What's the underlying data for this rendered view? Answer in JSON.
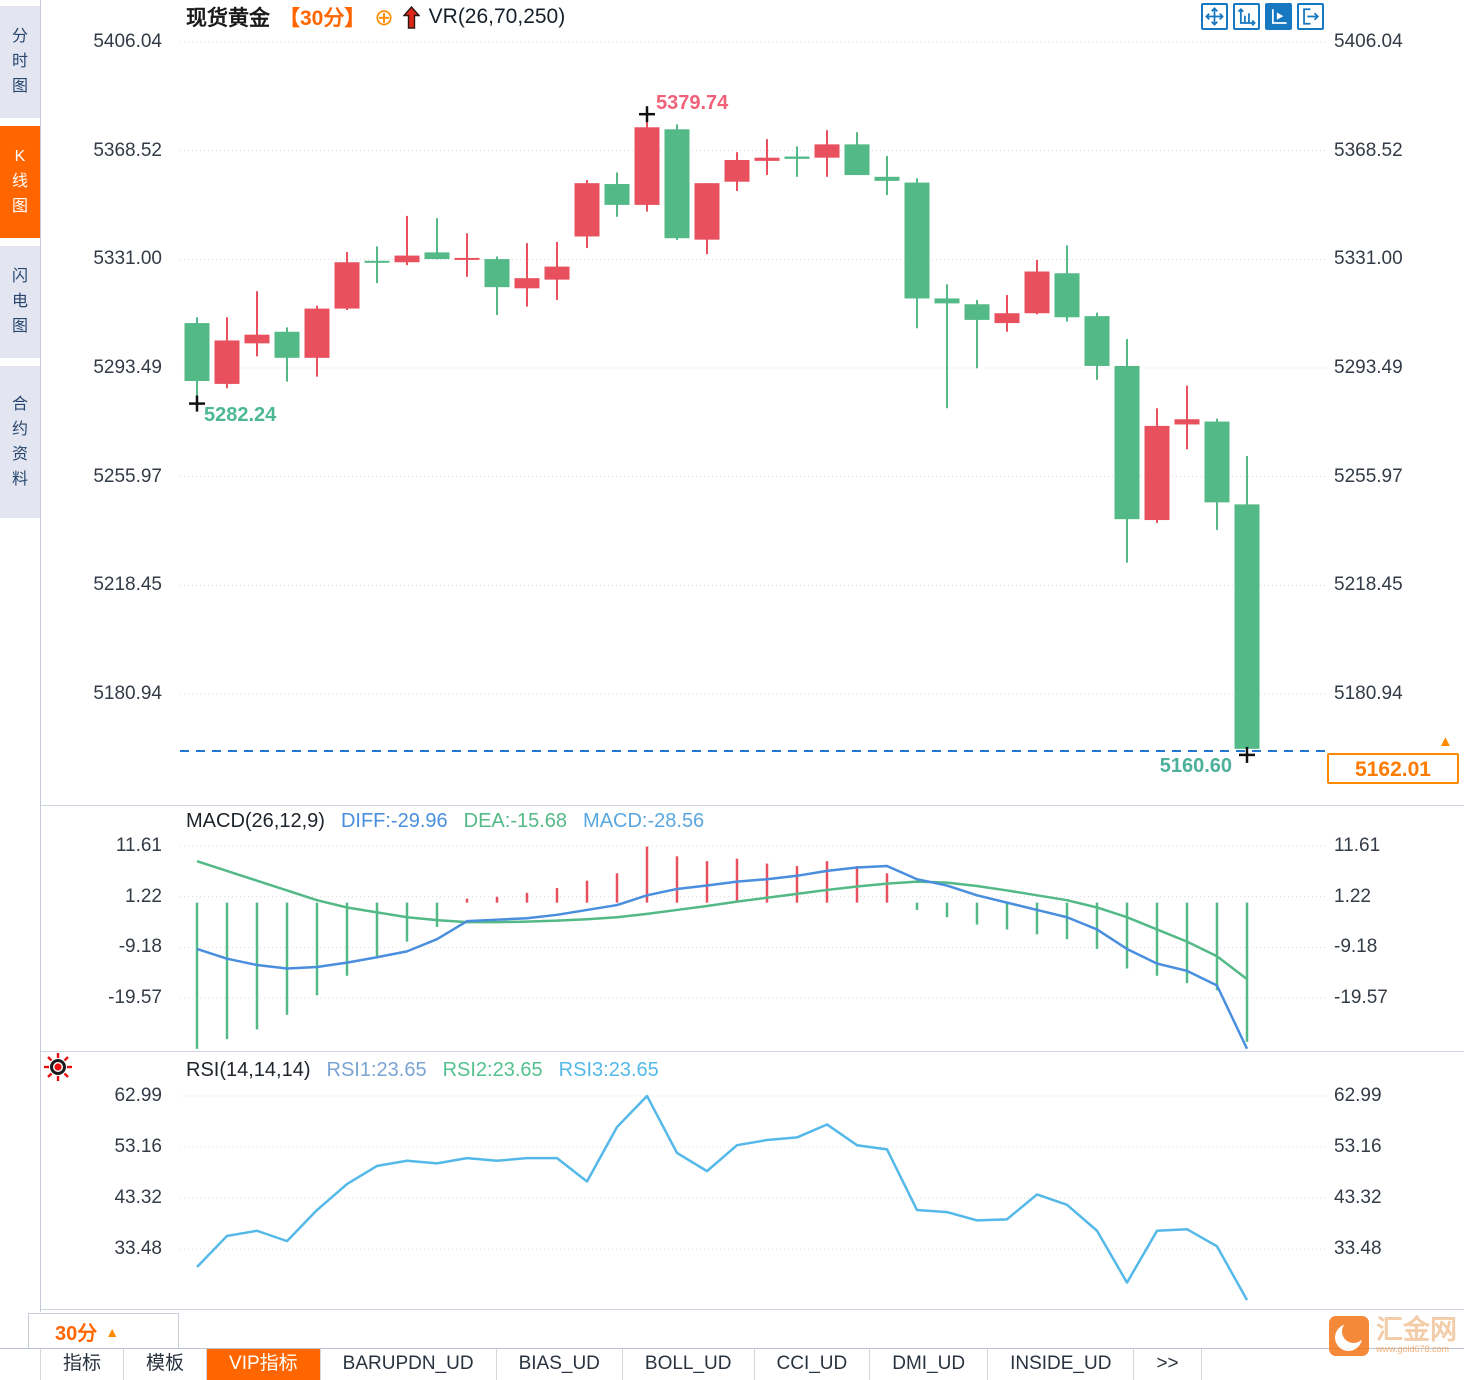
{
  "header": {
    "symbol": "现货黄金",
    "period": "【30分】",
    "plus_icon": "⊕",
    "up_arrow_icon": "red-up-arrow",
    "indicator": "VR(26,70,250)"
  },
  "toolbar": {
    "icons": [
      {
        "name": "crosshair-move-icon",
        "active": false
      },
      {
        "name": "axis-zoom-icon",
        "active": false
      },
      {
        "name": "axis-play-icon",
        "active": true
      },
      {
        "name": "pane-collapse-icon",
        "active": false
      }
    ]
  },
  "sidebar": {
    "tabs": [
      {
        "label": "分时图",
        "selected": false
      },
      {
        "label": "K线图",
        "selected": true
      },
      {
        "label": "闪电图",
        "selected": false
      },
      {
        "label": "合约资料",
        "selected": false
      }
    ]
  },
  "colors": {
    "up": "#e8505e",
    "down": "#53b987",
    "diff_line": "#4a8ede",
    "dea_line": "#53b987",
    "macd_value": "#5aa7e0",
    "rsi1_label": "#7aa4d4",
    "rsi2_label": "#53c08f",
    "rsi_line": "#54b9e8",
    "accent_orange": "#ff6600",
    "dashed_price_line": "#1f78d1",
    "icon_blue": "#1778c2",
    "grid": "#dcdcdc"
  },
  "chart_data": [
    {
      "type": "candlestick",
      "symbol": "现货黄金",
      "period": "30分",
      "overlay_indicator": "VR(26,70,250)",
      "y_ticks": [
        "5406.04",
        "5368.52",
        "5331.00",
        "5293.49",
        "5255.97",
        "5218.45",
        "5180.94"
      ],
      "ohlc": [
        [
          5309,
          5311,
          5282.24,
          5289
        ],
        [
          5288,
          5311,
          5286.5,
          5303
        ],
        [
          5302,
          5320,
          5297.5,
          5305
        ],
        [
          5306,
          5307.5,
          5288.8,
          5297
        ],
        [
          5297,
          5315,
          5290.5,
          5314
        ],
        [
          5314,
          5333.5,
          5313.5,
          5330
        ],
        [
          5330.5,
          5335.5,
          5322.8,
          5330
        ],
        [
          5330,
          5346,
          5329,
          5332.3
        ],
        [
          5333.4,
          5345.2,
          5331,
          5331.1
        ],
        [
          5331,
          5340,
          5325,
          5331.5
        ],
        [
          5331.1,
          5332,
          5311.8,
          5321.4
        ],
        [
          5321,
          5336.6,
          5314.7,
          5324.5
        ],
        [
          5324,
          5337,
          5317,
          5328.5
        ],
        [
          5338.9,
          5358.4,
          5334.9,
          5357.3
        ],
        [
          5357,
          5361,
          5345.7,
          5349.8
        ],
        [
          5349.8,
          5379.74,
          5347.5,
          5376.6
        ],
        [
          5375.9,
          5377.6,
          5337.7,
          5338.3
        ],
        [
          5337.8,
          5357.3,
          5332.8,
          5357.3
        ],
        [
          5357.8,
          5368,
          5354.6,
          5365.3
        ],
        [
          5365,
          5372.5,
          5360.1,
          5366.1
        ],
        [
          5366.5,
          5370,
          5359.5,
          5365.7
        ],
        [
          5366.1,
          5375.6,
          5359.5,
          5370.7
        ],
        [
          5370.7,
          5374.9,
          5360.1,
          5360.1
        ],
        [
          5359.5,
          5366.7,
          5353.2,
          5358.1
        ],
        [
          5357.5,
          5359,
          5307.2,
          5317.5
        ],
        [
          5317.5,
          5322.4,
          5279.6,
          5315.8
        ],
        [
          5315.5,
          5317,
          5293.4,
          5310.1
        ],
        [
          5309,
          5318.7,
          5306,
          5312.4
        ],
        [
          5312.4,
          5330.8,
          5312,
          5326.8
        ],
        [
          5326.2,
          5335.8,
          5309.5,
          5311
        ],
        [
          5311.4,
          5312.6,
          5289.4,
          5294.2
        ],
        [
          5294.2,
          5303.5,
          5226.3,
          5241.3
        ],
        [
          5241,
          5279.6,
          5240,
          5273.5
        ],
        [
          5274,
          5287.4,
          5265.4,
          5275.8
        ],
        [
          5275,
          5276,
          5237.6,
          5247.1
        ],
        [
          5246.4,
          5263.1,
          5160.6,
          5162.01
        ]
      ],
      "annotations": {
        "high": {
          "index": 15,
          "label": "5379.74"
        },
        "low": {
          "index": 0,
          "label": "5282.24"
        },
        "last_low": {
          "index": 35,
          "label": "5160.60"
        },
        "current_price": {
          "value": "5162.01",
          "line_style": "dashed-blue"
        }
      }
    },
    {
      "type": "macd",
      "title": "MACD(26,12,9)",
      "readout": {
        "diff": "DIFF:-29.96",
        "dea": "DEA:-15.68",
        "macd": "MACD:-28.56"
      },
      "y_ticks": [
        "11.61",
        "1.22",
        "-9.18",
        "-19.57"
      ],
      "hist": [
        -30,
        -28,
        -26,
        -23,
        -19,
        -15,
        -11,
        -8,
        -5,
        0.8,
        1.2,
        2,
        3,
        4.5,
        6,
        11.5,
        9.5,
        8.5,
        9,
        8,
        7.5,
        8.5,
        7.5,
        6,
        -1.5,
        -3,
        -4.5,
        -5.5,
        -6.5,
        -7.5,
        -9.5,
        -13.5,
        -15,
        -16.5,
        -18,
        -28.56
      ],
      "diff": [
        -9.5,
        -11.5,
        -12.8,
        -13.5,
        -13.2,
        -12.3,
        -11.2,
        -10,
        -7.5,
        -3.8,
        -3.5,
        -3.2,
        -2.5,
        -1.5,
        -0.5,
        1.5,
        2.8,
        3.5,
        4.3,
        4.8,
        5.5,
        6.5,
        7.2,
        7.5,
        4.8,
        3.5,
        1.5,
        0,
        -1.5,
        -3,
        -5.5,
        -9.5,
        -12.5,
        -14,
        -17,
        -29.96
      ],
      "dea": [
        8.5,
        6.5,
        4.5,
        2.5,
        0.5,
        -1,
        -2,
        -3,
        -3.6,
        -4,
        -4,
        -3.9,
        -3.7,
        -3.4,
        -3,
        -2.3,
        -1.5,
        -0.7,
        0.2,
        1,
        1.8,
        2.6,
        3.3,
        3.9,
        4.3,
        4.1,
        3.4,
        2.5,
        1.5,
        0.5,
        -1,
        -3,
        -5.5,
        -8,
        -11,
        -15.68
      ]
    },
    {
      "type": "rsi",
      "title": "RSI(14,14,14)",
      "readout": {
        "rsi1": "RSI1:23.65",
        "rsi2": "RSI2:23.65",
        "rsi3": "RSI3:23.65"
      },
      "y_ticks": [
        "62.99",
        "53.16",
        "43.32",
        "33.48"
      ],
      "rsi": [
        30,
        36,
        37,
        35,
        41,
        46,
        49.5,
        50.5,
        50,
        51,
        50.5,
        51,
        51,
        46.5,
        57,
        63,
        52,
        48.5,
        53.5,
        54.5,
        55,
        57.5,
        53.5,
        52.7,
        41,
        40.6,
        39,
        39.2,
        44,
        42,
        37,
        27,
        37,
        37.3,
        34,
        23.65
      ]
    }
  ],
  "footer": {
    "period_label": "30分",
    "period_arrow": "▲",
    "tabs": [
      {
        "label": "指标",
        "selected": false
      },
      {
        "label": "模板",
        "selected": false
      },
      {
        "label": "VIP指标",
        "selected": true
      },
      {
        "label": "BARUPDN_UD",
        "selected": false
      },
      {
        "label": "BIAS_UD",
        "selected": false
      },
      {
        "label": "BOLL_UD",
        "selected": false
      },
      {
        "label": "CCI_UD",
        "selected": false
      },
      {
        "label": "DMI_UD",
        "selected": false
      },
      {
        "label": "INSIDE_UD",
        "selected": false
      },
      {
        "label": ">>",
        "selected": false
      }
    ]
  },
  "watermark": {
    "name": "汇金网",
    "url": "www.gold678.com"
  },
  "misc_icons": {
    "rsi_marker": "red-sun-icon",
    "tag_arrow": "orange-up-triangle"
  }
}
